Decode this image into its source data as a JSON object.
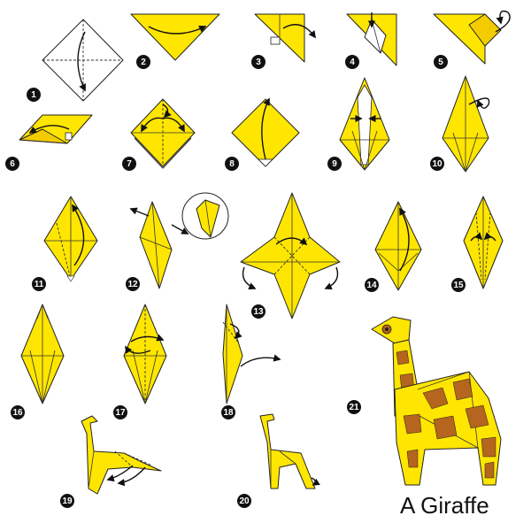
{
  "title": "A Giraffe",
  "colors": {
    "paper_yellow": "#ffe600",
    "paper_yellow_dark": "#f2cc00",
    "giraffe_spot": "#b5651d",
    "outline": "#222222",
    "badge": "#111111"
  },
  "steps": [
    {
      "label": "1"
    },
    {
      "label": "2"
    },
    {
      "label": "3"
    },
    {
      "label": "4"
    },
    {
      "label": "5"
    },
    {
      "label": "6"
    },
    {
      "label": "7"
    },
    {
      "label": "8"
    },
    {
      "label": "9"
    },
    {
      "label": "10"
    },
    {
      "label": "11"
    },
    {
      "label": "12"
    },
    {
      "label": "13"
    },
    {
      "label": "14"
    },
    {
      "label": "15"
    },
    {
      "label": "16"
    },
    {
      "label": "17"
    },
    {
      "label": "18"
    },
    {
      "label": "19"
    },
    {
      "label": "20"
    },
    {
      "label": "21"
    }
  ]
}
